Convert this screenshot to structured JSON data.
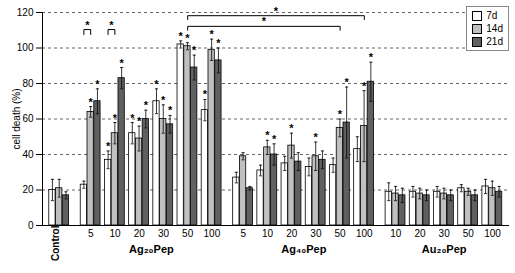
{
  "chart_data": {
    "type": "bar",
    "y_label": "cell death (%)",
    "ylim": [
      0,
      120
    ],
    "yticks": [
      0,
      20,
      40,
      60,
      80,
      100,
      120
    ],
    "grid": true,
    "legend": "top-right",
    "groups": [
      {
        "label": null,
        "categories": [
          "Control"
        ]
      },
      {
        "label": "Ag₂₀Pep",
        "categories": [
          "5",
          "10",
          "20",
          "30",
          "50",
          "100"
        ]
      },
      {
        "label": "Ag₄₀Pep",
        "categories": [
          "5",
          "10",
          "20",
          "30",
          "50",
          "100"
        ]
      },
      {
        "label": "Au₂₀Pep",
        "categories": [
          "10",
          "20",
          "30",
          "50",
          "100"
        ]
      }
    ],
    "series": [
      {
        "name": "7d",
        "color": "#ffffff",
        "values": [
          20,
          23,
          37,
          52,
          70,
          102,
          65,
          27,
          31,
          35,
          33,
          34,
          43,
          19,
          19,
          19,
          21,
          22
        ],
        "errors": [
          6,
          2,
          5,
          6,
          7,
          2,
          6,
          3,
          3,
          4,
          5,
          4,
          7,
          5,
          3,
          3,
          2,
          4
        ],
        "significance": [
          null,
          null,
          "*",
          "*",
          "*",
          "*",
          "*",
          null,
          null,
          null,
          null,
          null,
          null,
          null,
          null,
          null,
          null,
          null
        ]
      },
      {
        "name": "14d",
        "color": "#c0c0c0",
        "values": [
          21,
          64,
          52,
          49,
          60,
          101,
          99,
          39,
          44,
          45,
          39,
          55,
          56,
          18,
          18,
          18,
          19,
          21
        ],
        "errors": [
          5,
          3,
          6,
          7,
          8,
          2,
          6,
          2,
          4,
          7,
          8,
          5,
          20,
          4,
          3,
          3,
          2,
          4
        ],
        "significance": [
          null,
          "*",
          "*",
          "*",
          "*",
          "*",
          "*",
          null,
          "*",
          "*",
          "*",
          "*",
          "*",
          null,
          null,
          null,
          null,
          null
        ]
      },
      {
        "name": "21d",
        "color": "#606060",
        "values": [
          17,
          70,
          83,
          60,
          57,
          89,
          93,
          21,
          40,
          36,
          37,
          58,
          81,
          17,
          17,
          17,
          17,
          19
        ],
        "errors": [
          2,
          7,
          6,
          5,
          5,
          7,
          7,
          1,
          6,
          5,
          5,
          20,
          11,
          4,
          3,
          3,
          3,
          3
        ],
        "significance": [
          null,
          "*",
          "*",
          "*",
          "*",
          "*",
          "*",
          null,
          "*",
          null,
          null,
          "*",
          "*",
          null,
          null,
          null,
          null,
          null
        ]
      }
    ],
    "brackets": [
      {
        "from": {
          "group": "Ag₂₀Pep",
          "category": "5",
          "series": "7d"
        },
        "to": {
          "group": "Ag₂₀Pep",
          "category": "5",
          "series": "14d"
        },
        "label": "*"
      },
      {
        "from": {
          "group": "Ag₂₀Pep",
          "category": "10",
          "series": "7d"
        },
        "to": {
          "group": "Ag₂₀Pep",
          "category": "10",
          "series": "14d"
        },
        "label": "*"
      },
      {
        "from": {
          "group": "Ag₂₀Pep",
          "category": "50"
        },
        "to": {
          "group": "Ag₄₀Pep",
          "category": "50"
        },
        "label": "*"
      },
      {
        "from": {
          "group": "Ag₂₀Pep",
          "category": "50"
        },
        "to": {
          "group": "Ag₄₀Pep",
          "category": "100"
        },
        "label": "*"
      }
    ]
  }
}
